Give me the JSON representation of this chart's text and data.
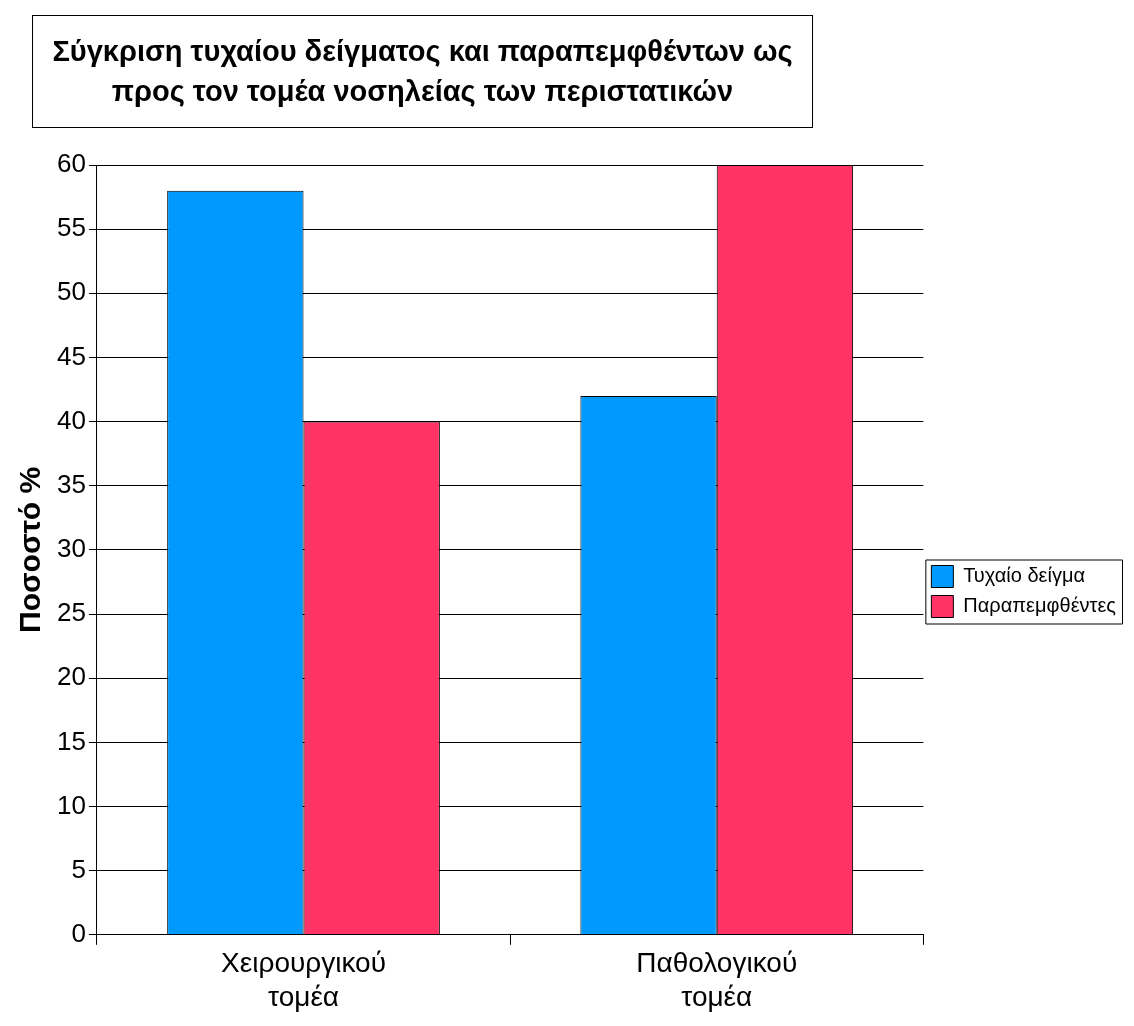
{
  "chart_data": {
    "type": "bar",
    "title": "Σύγκριση τυχαίου δείγματος και παραπεμφθέντων ως προς τον τομέα νοσηλείας των περιστατικών",
    "ylabel": "Ποσοστό %",
    "categories": [
      "Χειρουργικού τομέα",
      "Παθολογικού τομέα"
    ],
    "series": [
      {
        "name": "Τυχαίο δείγμα",
        "color": "#0099ff",
        "values": [
          58,
          42
        ]
      },
      {
        "name": "Παραπεμφθέντες",
        "color": "#ff3366",
        "values": [
          40,
          60
        ]
      }
    ],
    "ylim": [
      0,
      60
    ],
    "yticks": [
      0,
      5,
      10,
      15,
      20,
      25,
      30,
      35,
      40,
      45,
      50,
      55,
      60
    ],
    "grid": "y",
    "legend": "right"
  }
}
